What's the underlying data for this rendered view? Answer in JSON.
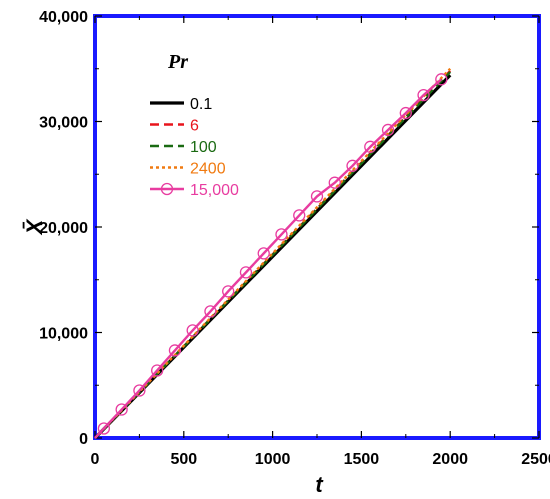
{
  "chart_data": {
    "type": "line",
    "xlabel": "t",
    "ylabel": "X̄",
    "xlim": [
      0,
      2500
    ],
    "ylim": [
      0,
      40000
    ],
    "xticks": [
      "0",
      "500",
      "1000",
      "1500",
      "2000",
      "2500"
    ],
    "yticks": [
      "0",
      "10,000",
      "20,000",
      "30,000",
      "40,000"
    ],
    "legend_title": "Pr",
    "legend_position": "top-left",
    "grid": false,
    "frame_color": "#1a1aff",
    "series": [
      {
        "name": "0.1",
        "color": "#000000",
        "style": "solid",
        "marker": "none",
        "x": [
          0,
          2000
        ],
        "y": [
          0,
          34400
        ]
      },
      {
        "name": "6",
        "color": "#e8141c",
        "style": "dashed",
        "marker": "none",
        "x": [
          0,
          2000
        ],
        "y": [
          0,
          34800
        ]
      },
      {
        "name": "100",
        "color": "#1a6a12",
        "style": "dashed",
        "marker": "none",
        "x": [
          0,
          2000
        ],
        "y": [
          0,
          34700
        ]
      },
      {
        "name": "2400",
        "color": "#f07a10",
        "style": "dotted",
        "marker": "none",
        "x": [
          0,
          2000
        ],
        "y": [
          0,
          35000
        ]
      },
      {
        "name": "15,000",
        "color": "#e83ca0",
        "style": "solid",
        "marker": "circle",
        "x": [
          50,
          150,
          250,
          350,
          450,
          550,
          650,
          750,
          850,
          950,
          1050,
          1150,
          1250,
          1350,
          1450,
          1550,
          1650,
          1750,
          1850,
          1950
        ],
        "y": [
          900,
          2700,
          4500,
          6400,
          8300,
          10200,
          12000,
          13900,
          15700,
          17500,
          19300,
          21100,
          22900,
          24200,
          25800,
          27600,
          29200,
          30800,
          32500,
          34000
        ]
      }
    ]
  }
}
